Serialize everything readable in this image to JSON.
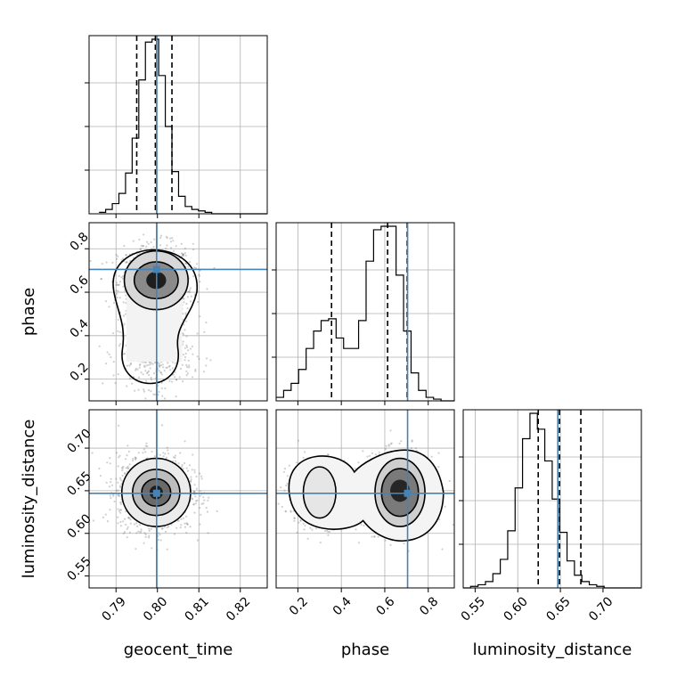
{
  "chart_data": {
    "type": "corner",
    "parameters": [
      "geocent_time",
      "phase",
      "luminosity_distance"
    ],
    "axis_labels": {
      "geocent_time": "geocent_time",
      "phase": "phase",
      "luminosity_distance": "luminosity_distance"
    },
    "ranges": {
      "geocent_time": [
        0.7835,
        0.8265
      ],
      "phase": [
        0.1,
        0.92
      ],
      "luminosity_distance": [
        0.536,
        0.745
      ]
    },
    "ticks": {
      "geocent_time": [
        0.79,
        0.8,
        0.81,
        0.82
      ],
      "phase": [
        0.2,
        0.4,
        0.6,
        0.8
      ],
      "luminosity_distance": [
        0.55,
        0.6,
        0.65,
        0.7
      ]
    },
    "tick_labels": {
      "geocent_time": [
        "0.79",
        "0.80",
        "0.81",
        "0.82"
      ],
      "phase": [
        "0.2",
        "0.4",
        "0.6",
        "0.8"
      ],
      "luminosity_distance": [
        "0.55",
        "0.60",
        "0.65",
        "0.70"
      ]
    },
    "truths": {
      "geocent_time": 0.7998,
      "phase": 0.705,
      "luminosity_distance": 0.647
    },
    "quantiles": {
      "geocent_time": [
        0.795,
        0.7995,
        0.8035
      ],
      "phase": [
        0.355,
        0.613,
        0.703
      ],
      "luminosity_distance": [
        0.624,
        0.649,
        0.674
      ]
    },
    "histograms": {
      "geocent_time": {
        "bin_width": 0.0016,
        "bin_start": 0.7859,
        "counts": [
          1,
          3,
          7,
          14,
          28,
          52,
          92,
          118,
          120,
          95,
          60,
          29,
          12,
          5,
          3,
          2,
          1,
          0,
          0,
          0,
          0,
          0,
          0,
          0,
          0,
          0
        ]
      },
      "phase": {
        "bin_width": 0.0345,
        "bin_start": 0.1,
        "counts": [
          2,
          6,
          10,
          18,
          30,
          40,
          46,
          47,
          36,
          30,
          30,
          46,
          80,
          98,
          100,
          100,
          72,
          40,
          16,
          6,
          2,
          1,
          0,
          0
        ]
      },
      "luminosity_distance": {
        "bin_width": 0.0087,
        "bin_start": 0.536,
        "counts": [
          0,
          1,
          2,
          4,
          9,
          18,
          36,
          63,
          94,
          110,
          100,
          80,
          56,
          35,
          17,
          8,
          4,
          2,
          1,
          0,
          0,
          0,
          0,
          0
        ]
      }
    },
    "pairs": [
      {
        "x": "geocent_time",
        "y": "phase"
      },
      {
        "x": "geocent_time",
        "y": "luminosity_distance"
      },
      {
        "x": "phase",
        "y": "luminosity_distance"
      }
    ],
    "grid": true,
    "truth_color": "#4682b4",
    "line_color": "#000000",
    "grid_color": "#b0b0b0"
  }
}
